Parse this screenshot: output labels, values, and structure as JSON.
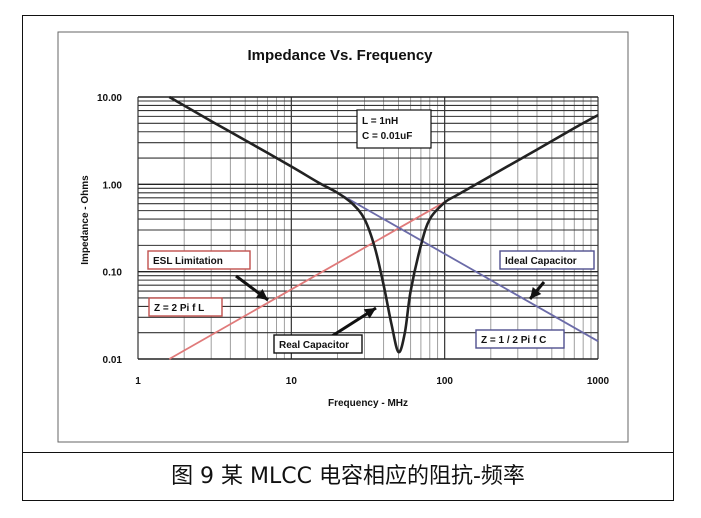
{
  "caption": "图 9 某 MLCC 电容相应的阻抗-频率",
  "chart_data": {
    "type": "line",
    "title": "Impedance Vs. Frequency",
    "xlabel": "Frequency - MHz",
    "ylabel": "Impedance - Ohms",
    "xscale": "log",
    "yscale": "log",
    "xlim": [
      1,
      1000
    ],
    "ylim": [
      0.01,
      10
    ],
    "x_ticks": [
      "1",
      "10",
      "100",
      "1000"
    ],
    "y_ticks": [
      "0.01",
      "0.10",
      "1.00",
      "10.00"
    ],
    "grid": true,
    "params_box": [
      "L = 1nH",
      "C = 0.01uF"
    ],
    "series": [
      {
        "name": "Real Capacitor",
        "color": "#222222",
        "x": [
          1.6,
          3,
          5,
          10,
          15,
          20,
          25,
          30,
          35,
          40,
          45,
          50,
          55,
          60,
          70,
          80,
          100,
          120,
          200,
          400,
          700,
          1000
        ],
        "y": [
          10,
          5.3,
          3.2,
          1.6,
          1.05,
          0.8,
          0.6,
          0.4,
          0.19,
          0.07,
          0.025,
          0.012,
          0.02,
          0.06,
          0.2,
          0.4,
          0.62,
          0.75,
          1.25,
          2.5,
          4.4,
          6.2
        ]
      },
      {
        "name": "Ideal Capacitor",
        "color": "#6b6ba8",
        "x": [
          16,
          1000
        ],
        "y": [
          1.0,
          0.016
        ]
      },
      {
        "name": "ESL Limitation",
        "color": "#e07a7a",
        "x": [
          1.6,
          110
        ],
        "y": [
          0.01,
          0.69
        ]
      }
    ],
    "annotations": [
      {
        "text": "ESL Limitation",
        "color": "#c0504d"
      },
      {
        "text": "Z = 2 Pi f L",
        "color": "#c0504d"
      },
      {
        "text": "Ideal Capacitor",
        "color": "#4f4f8f"
      },
      {
        "text": "Z = 1 / 2 Pi f C",
        "color": "#4f4f8f"
      },
      {
        "text": "Real Capacitor",
        "color": "#111111"
      }
    ]
  }
}
